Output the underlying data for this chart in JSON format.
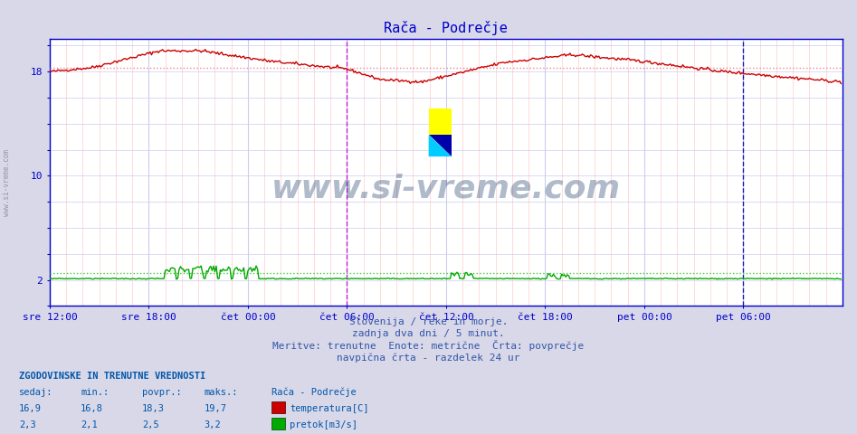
{
  "title": "Rača - Podrečje",
  "title_color": "#0000cc",
  "bg_color": "#d8d8e8",
  "plot_bg_color": "#ffffff",
  "x_tick_labels": [
    "sre 12:00",
    "sre 18:00",
    "čet 00:00",
    "čet 06:00",
    "čet 12:00",
    "čet 18:00",
    "pet 00:00",
    "pet 06:00"
  ],
  "x_tick_positions": [
    0,
    72,
    144,
    216,
    288,
    360,
    432,
    504
  ],
  "ylim": [
    0,
    20.5
  ],
  "xlim": [
    0,
    576
  ],
  "temp_avg": 18.3,
  "flow_avg": 2.5,
  "axis_color": "#0000cc",
  "temp_line_color": "#cc0000",
  "temp_avg_color": "#ee8888",
  "flow_line_color": "#00aa00",
  "flow_avg_color": "#44cc44",
  "vertical_line_color": "#cc00cc",
  "vertical_line2_color": "#0000aa",
  "watermark": "www.si-vreme.com",
  "watermark_color": "#1a3a6b",
  "watermark_alpha": 0.35,
  "footer_line1": "Slovenija / reke in morje.",
  "footer_line2": "zadnja dva dni / 5 minut.",
  "footer_line3": "Meritve: trenutne  Enote: metrične  Črta: povprečje",
  "footer_line4": "navpična črta - razdelek 24 ur",
  "footer_color": "#3355aa",
  "legend_title": "ZGODOVINSKE IN TRENUTNE VREDNOSTI",
  "legend_headers": [
    "sedaj:",
    "min.:",
    "povpr.:",
    "maks.:",
    "Rača - Podrečje"
  ],
  "temp_values": [
    "16,9",
    "16,8",
    "18,3",
    "19,7"
  ],
  "flow_values": [
    "2,3",
    "2,1",
    "2,5",
    "3,2"
  ],
  "temp_label": "temperatura[C]",
  "flow_label": "pretok[m3/s]",
  "legend_color": "#0055aa",
  "sidebar_text": "www.si-vreme.com"
}
